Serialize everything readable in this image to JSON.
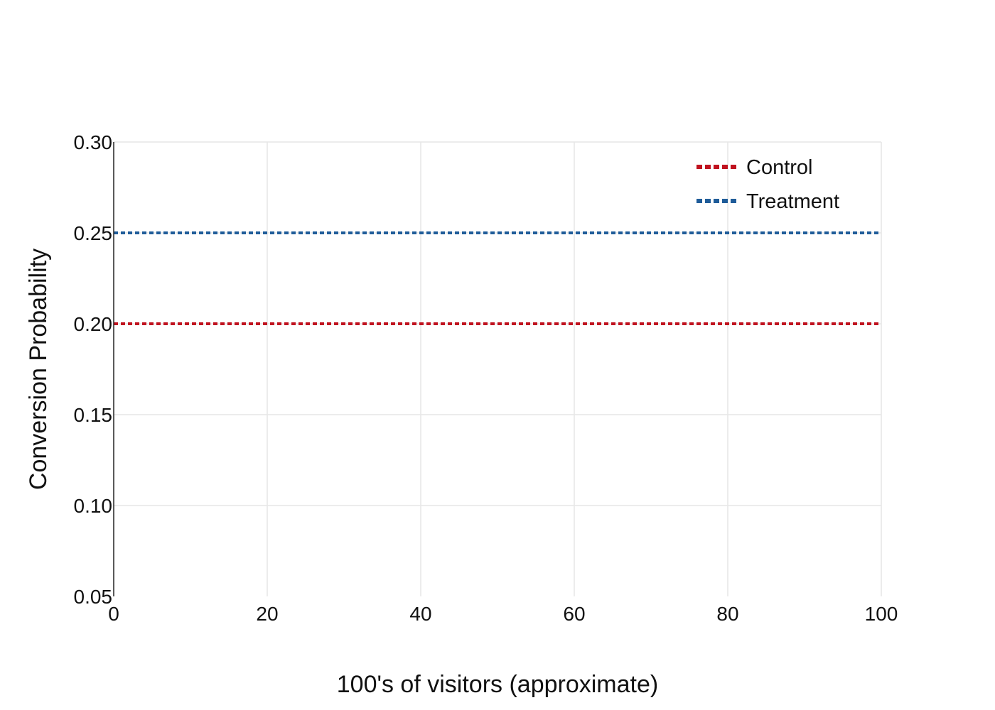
{
  "chart_data": {
    "type": "line",
    "title": "",
    "xlabel": "100's of visitors (approximate)",
    "ylabel": "Conversion Probability",
    "xlim": [
      0,
      100
    ],
    "ylim": [
      0.05,
      0.3
    ],
    "x_ticks": [
      0,
      20,
      40,
      60,
      80,
      100
    ],
    "x_tick_labels": [
      "0",
      "20",
      "40",
      "60",
      "80",
      "100"
    ],
    "y_ticks": [
      0.05,
      0.1,
      0.15,
      0.2,
      0.25,
      0.3
    ],
    "y_tick_labels": [
      "0.05",
      "0.10",
      "0.15",
      "0.20",
      "0.25",
      "0.30"
    ],
    "grid": true,
    "legend_position": "top-right",
    "series": [
      {
        "name": "Control",
        "color": "#c0121f",
        "line_style": "dotted",
        "x": [
          0,
          100
        ],
        "y": [
          0.2,
          0.2
        ]
      },
      {
        "name": "Treatment",
        "color": "#1f5c99",
        "line_style": "dotted",
        "x": [
          0,
          100
        ],
        "y": [
          0.25,
          0.25
        ]
      }
    ]
  }
}
